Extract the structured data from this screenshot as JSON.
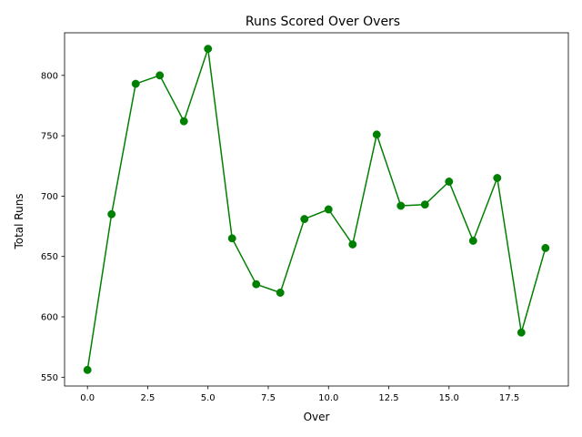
{
  "chart_data": {
    "type": "line",
    "title": "Runs Scored Over Overs",
    "xlabel": "Over",
    "ylabel": "Total Runs",
    "x": [
      0,
      1,
      2,
      3,
      4,
      5,
      6,
      7,
      8,
      9,
      10,
      11,
      12,
      13,
      14,
      15,
      16,
      17,
      18,
      19
    ],
    "series": [
      {
        "values": [
          556,
          685,
          793,
          800,
          762,
          822,
          665,
          627,
          620,
          681,
          689,
          660,
          751,
          692,
          693,
          712,
          663,
          715,
          587,
          657
        ],
        "color": "#008000",
        "marker": "circle"
      }
    ],
    "xlim": [
      -0.95,
      19.95
    ],
    "ylim": [
      542.7,
      835.3
    ],
    "xticks": [
      0.0,
      2.5,
      5.0,
      7.5,
      10.0,
      12.5,
      15.0,
      17.5
    ],
    "xtick_labels": [
      "0.0",
      "2.5",
      "5.0",
      "7.5",
      "10.0",
      "12.5",
      "15.0",
      "17.5"
    ],
    "yticks": [
      550,
      600,
      650,
      700,
      750,
      800
    ],
    "ytick_labels": [
      "550",
      "600",
      "650",
      "700",
      "750",
      "800"
    ],
    "grid": false,
    "legend": "none"
  }
}
